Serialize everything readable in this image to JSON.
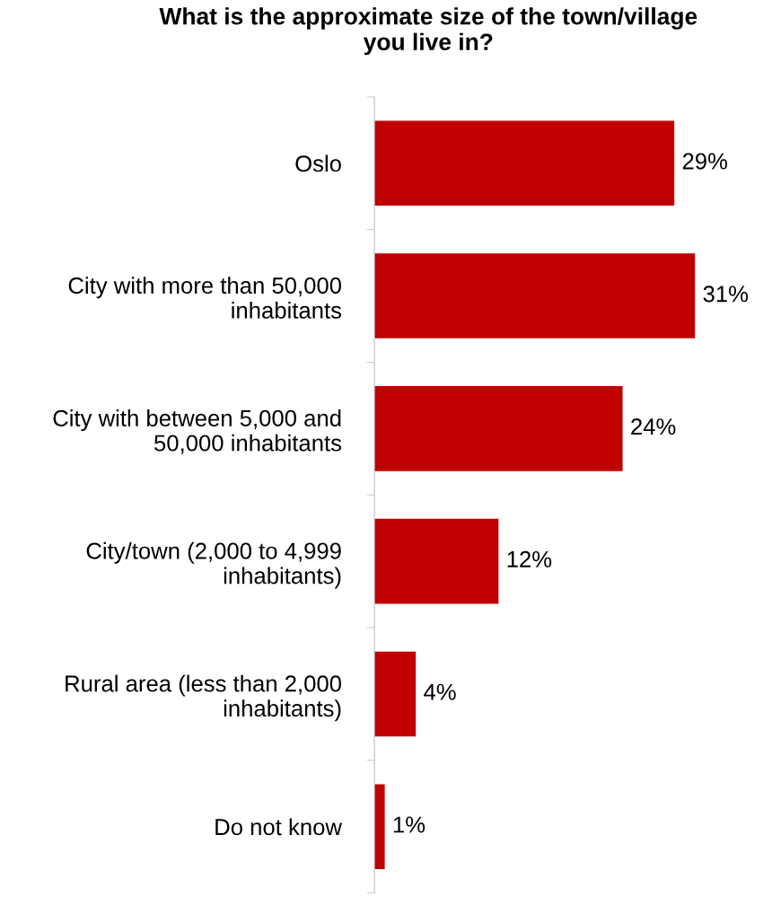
{
  "chart_data": {
    "type": "bar",
    "orientation": "horizontal",
    "title": "What is the approximate size of the town/village\nyou live in?",
    "categories": [
      "Oslo",
      "City with more than 50,000\ninhabitants",
      "City with between 5,000 and\n50,000 inhabitants",
      "City/town (2,000 to 4,999\ninhabitants)",
      "Rural area (less than 2,000\ninhabitants)",
      "Do not know"
    ],
    "values": [
      29,
      31,
      24,
      12,
      4,
      1
    ],
    "value_labels": [
      "29%",
      "31%",
      "24%",
      "12%",
      "4%",
      "1%"
    ],
    "color": "#c00000",
    "grid": false,
    "legend": false
  }
}
